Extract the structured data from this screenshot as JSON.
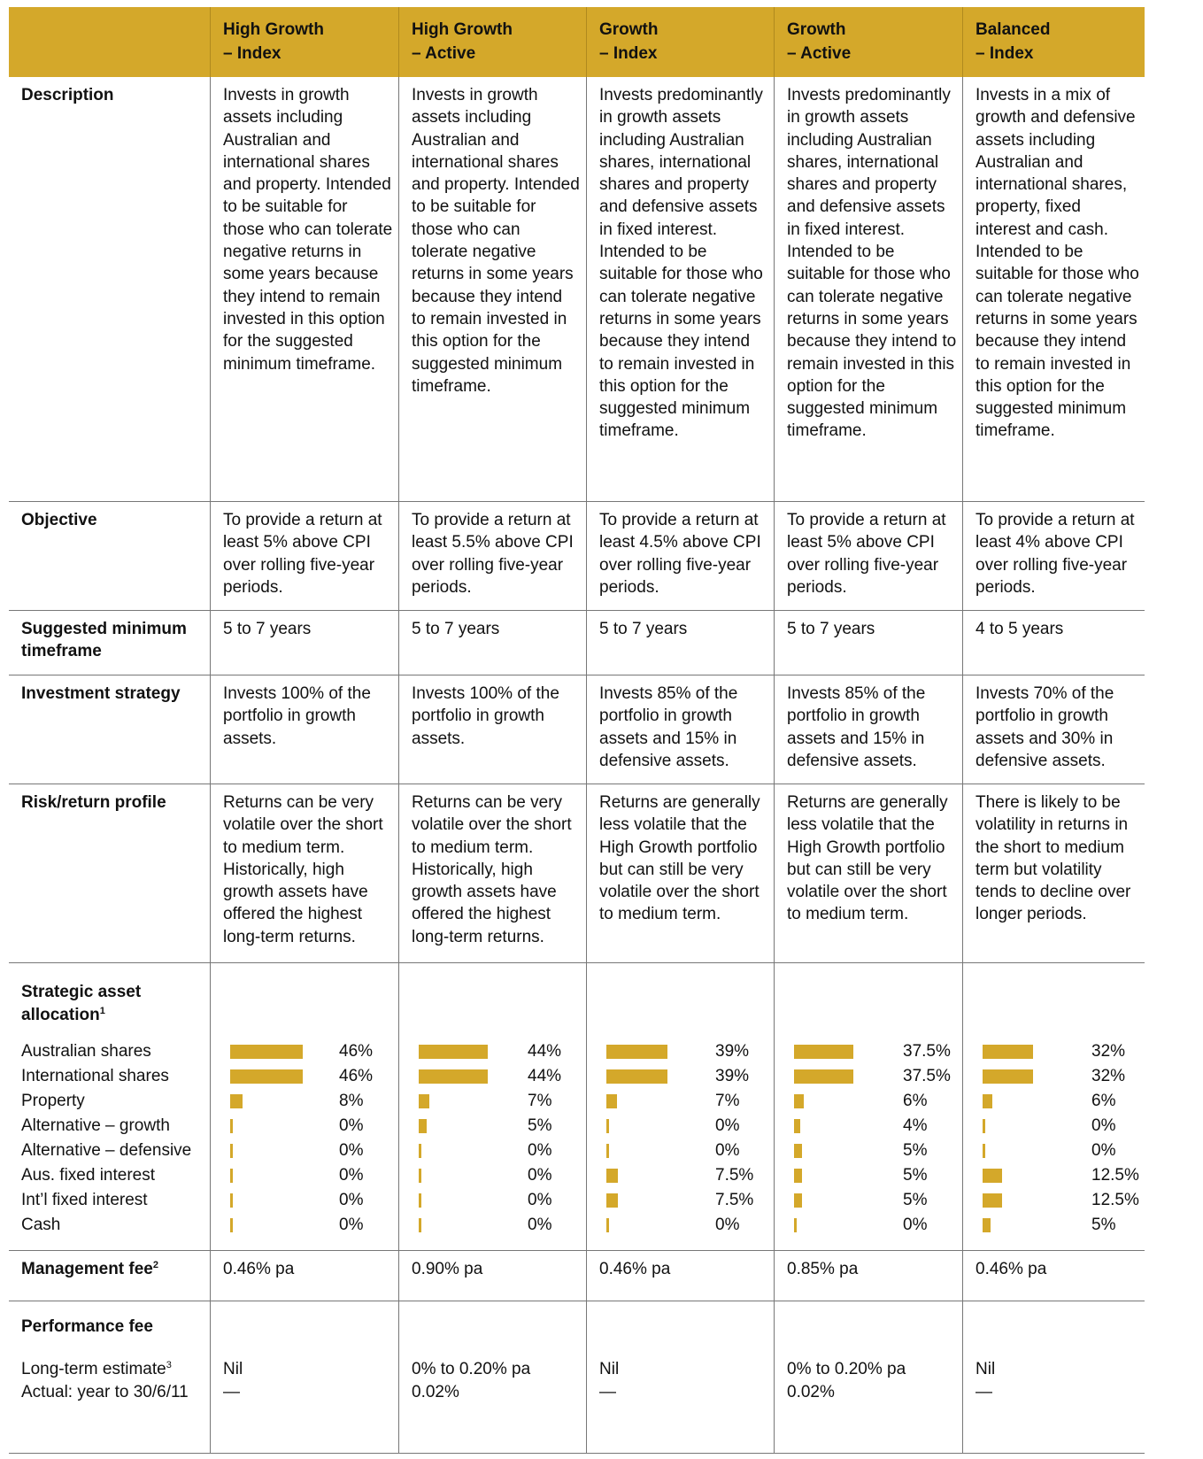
{
  "header": {
    "columns": [
      {
        "name": "High Growth",
        "variant": "– Index"
      },
      {
        "name": "High Growth",
        "variant": "– Active"
      },
      {
        "name": "Growth",
        "variant": "– Index"
      },
      {
        "name": "Growth",
        "variant": "– Active"
      },
      {
        "name": "Balanced",
        "variant": "– Index"
      }
    ]
  },
  "rows": [
    {
      "label": "Description",
      "values": [
        "Invests in growth assets including Australian and international shares and property. Intended to be suitable for those who can tolerate negative returns in some years because they intend to remain invested in this option for the suggested minimum timeframe.",
        "Invests in growth assets including Australian and international shares and property. Intended to be suitable for those who can tolerate negative returns in some years because they intend to remain invested in this option for the suggested minimum timeframe.",
        "Invests predominantly in growth assets including Australian shares, international shares and property and defensive assets in fixed interest. Intended to be suitable for those who can tolerate negative returns in some years because they intend to remain invested in this option for the suggested minimum timeframe.",
        "Invests predominantly in growth assets including Australian shares, international shares and property and defensive assets in fixed interest. Intended to be suitable for those who can tolerate negative returns in some years because they intend to remain invested in this option for the suggested minimum timeframe.",
        "Invests in a mix of growth and defensive assets including Australian and international shares, property, fixed interest and cash. Intended to be suitable for those who can tolerate negative returns in some years because they intend to remain invested in this option for the suggested minimum timeframe."
      ]
    },
    {
      "label": "Objective",
      "values": [
        "To provide a return at least 5% above CPI over rolling five-year periods.",
        "To provide a return at least 5.5% above CPI over rolling five-year periods.",
        "To provide a return at least 4.5% above CPI over rolling five-year periods.",
        "To provide a return at least 5% above CPI over rolling five-year periods.",
        "To provide a return at least 4% above CPI over rolling five-year periods."
      ]
    },
    {
      "label": "Suggested minimum timeframe",
      "values": [
        "5 to 7 years",
        "5 to 7 years",
        "5 to 7 years",
        "5 to 7 years",
        "4 to 5 years"
      ]
    },
    {
      "label": "Investment strategy",
      "values": [
        "Invests 100% of the portfolio in growth assets.",
        "Invests 100% of the portfolio in growth assets.",
        "Invests 85% of the portfolio in growth assets and 15% in defensive assets.",
        "Invests 85% of the portfolio in growth assets and 15% in defensive assets.",
        "Invests 70% of the portfolio in growth assets and 30% in defensive assets."
      ]
    },
    {
      "label": "Risk/return profile",
      "values": [
        "Returns can be very volatile over the short to medium term. Historically, high growth assets have offered the highest long-term returns.",
        "Returns can be very volatile over the short to medium term. Historically, high growth assets have offered the highest long-term returns.",
        "Returns are generally less volatile that the High Growth portfolio but can still be very volatile over the short to medium term.",
        "Returns are generally less volatile that the High Growth portfolio but can still be very volatile over the short to medium term.",
        "There is likely to be volatility in returns in the short to medium term but volatility tends to decline over longer periods."
      ]
    }
  ],
  "allocation": {
    "label": "Strategic asset allocation",
    "note": "1",
    "assets": [
      "Australian shares",
      "International shares",
      "Property",
      "Alternative – growth",
      "Alternative – defensive",
      "Aus. fixed interest",
      "Int’l fixed interest",
      "Cash"
    ],
    "values": [
      [
        46,
        46,
        8,
        0,
        0,
        0,
        0,
        0
      ],
      [
        44,
        44,
        7,
        5,
        0,
        0,
        0,
        0
      ],
      [
        39,
        39,
        7,
        0,
        0,
        7.5,
        7.5,
        0
      ],
      [
        37.5,
        37.5,
        6,
        4,
        5,
        5,
        5,
        0
      ],
      [
        32,
        32,
        6,
        0,
        0,
        12.5,
        12.5,
        5
      ]
    ],
    "value_labels": [
      [
        "46%",
        "46%",
        "8%",
        "0%",
        "0%",
        "0%",
        "0%",
        "0%"
      ],
      [
        "44%",
        "44%",
        "7%",
        "5%",
        "0%",
        "0%",
        "0%",
        "0%"
      ],
      [
        "39%",
        "39%",
        "7%",
        "0%",
        "0%",
        "7.5%",
        "7.5%",
        "0%"
      ],
      [
        "37.5%",
        "37.5%",
        "6%",
        "4%",
        "5%",
        "5%",
        "5%",
        "0%"
      ],
      [
        "32%",
        "32%",
        "6%",
        "0%",
        "0%",
        "12.5%",
        "12.5%",
        "5%"
      ]
    ],
    "color": "#d4a82a"
  },
  "management_fee": {
    "label": "Management fee",
    "note": "2",
    "values": [
      "0.46% pa",
      "0.90% pa",
      "0.46% pa",
      "0.85% pa",
      "0.46% pa"
    ]
  },
  "performance_fee": {
    "label": "Performance fee",
    "sublabels": [
      {
        "text": "Long-term estimate",
        "note": "3"
      },
      {
        "text": "Actual: year to 30/6/11"
      }
    ],
    "values": [
      [
        "Nil",
        "—"
      ],
      [
        "0% to 0.20% pa",
        "0.02%"
      ],
      [
        "Nil",
        "—"
      ],
      [
        "0% to 0.20% pa",
        "0.02%"
      ],
      [
        "Nil",
        "—"
      ]
    ]
  }
}
